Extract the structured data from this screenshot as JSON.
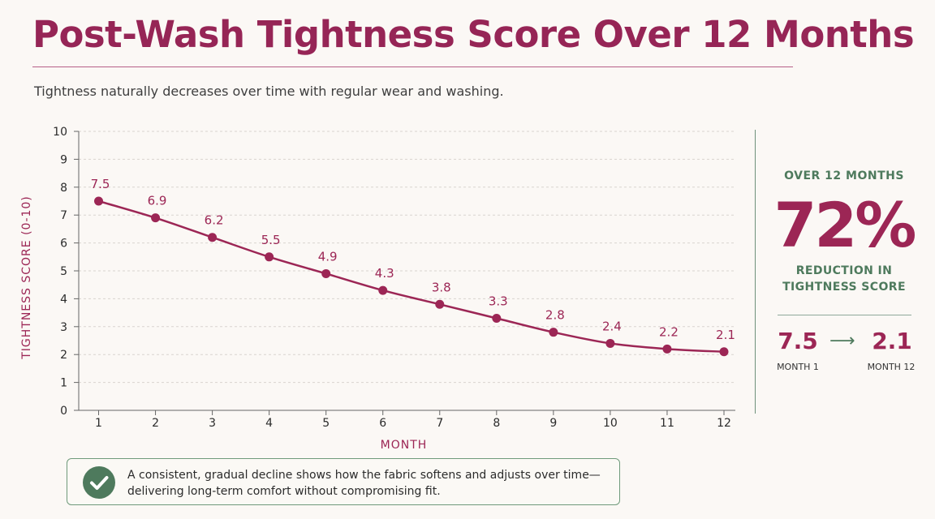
{
  "title": "Post-Wash Tightness Score Over 12 Months",
  "subtitle": "Tightness naturally decreases over time with regular wear and washing.",
  "colors": {
    "accent": "#9c2655",
    "green": "#4e7a5d",
    "grid": "#d9d4d0",
    "background": "#fbf8f5"
  },
  "chart_data": {
    "type": "line",
    "x": [
      1,
      2,
      3,
      4,
      5,
      6,
      7,
      8,
      9,
      10,
      11,
      12
    ],
    "series": [
      {
        "values": [
          7.5,
          6.9,
          6.2,
          5.5,
          4.9,
          4.3,
          3.8,
          3.3,
          2.8,
          2.4,
          2.2,
          2.1
        ]
      }
    ],
    "data_labels": [
      "7.5",
      "6.9",
      "6.2",
      "5.5",
      "4.9",
      "4.3",
      "3.8",
      "3.3",
      "2.8",
      "2.4",
      "2.2",
      "2.1"
    ],
    "xlabel": "MONTH",
    "ylabel": "TIGHTNESS SCORE (0-10)",
    "ylim": [
      0,
      10
    ],
    "yticks": [
      0,
      1,
      2,
      3,
      4,
      5,
      6,
      7,
      8,
      9,
      10
    ],
    "xticks": [
      1,
      2,
      3,
      4,
      5,
      6,
      7,
      8,
      9,
      10,
      11,
      12
    ],
    "grid": true,
    "grid_style": "dashed-horizontal",
    "legend": "none"
  },
  "stat": {
    "kicker": "OVER 12 MONTHS",
    "value": "72%",
    "caption_line1": "REDUCTION IN",
    "caption_line2": "TIGHTNESS SCORE",
    "from_value": "7.5",
    "from_label": "MONTH 1",
    "arrow": "⟶",
    "to_value": "2.1",
    "to_label": "MONTH 12"
  },
  "note": {
    "icon": "checkmark-icon",
    "line1": "A consistent, gradual decline shows how the fabric softens and adjusts over time—",
    "line2": "delivering long-term comfort without compromising fit."
  }
}
